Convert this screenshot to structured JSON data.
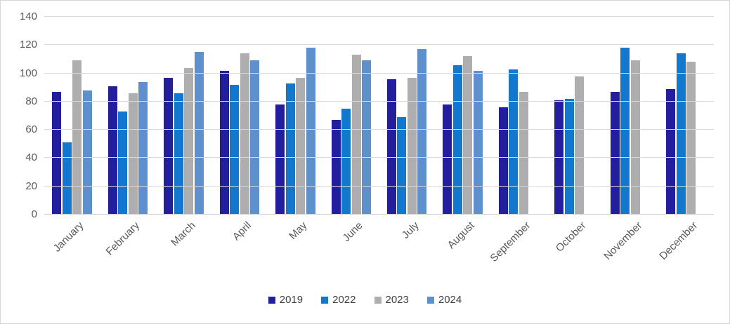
{
  "chart_data": {
    "type": "bar",
    "title": "",
    "xlabel": "",
    "ylabel": "",
    "categories": [
      "January",
      "February",
      "March",
      "April",
      "May",
      "June",
      "July",
      "August",
      "September",
      "October",
      "November",
      "December"
    ],
    "series": [
      {
        "name": "2019",
        "color": "#221E9E",
        "values": [
          87,
          91,
          97,
          102,
          78,
          67,
          96,
          78,
          76,
          81,
          87,
          89
        ]
      },
      {
        "name": "2022",
        "color": "#1377CE",
        "values": [
          51,
          73,
          86,
          92,
          93,
          75,
          69,
          106,
          103,
          82,
          118,
          114
        ]
      },
      {
        "name": "2023",
        "color": "#AEAEAE",
        "values": [
          109,
          86,
          104,
          114,
          97,
          113,
          97,
          112,
          87,
          98,
          109,
          108
        ]
      },
      {
        "name": "2024",
        "color": "#5D90CD",
        "values": [
          88,
          94,
          115,
          109,
          118,
          109,
          117,
          102,
          null,
          null,
          null,
          null
        ]
      }
    ],
    "y_axis": {
      "min": 0,
      "max": 140,
      "step": 20,
      "tick_labels": [
        "0",
        "20",
        "40",
        "60",
        "80",
        "100",
        "120",
        "140"
      ]
    },
    "x_axis": {
      "label_rotation_deg": 45
    },
    "grid": true,
    "legend_position": "bottom",
    "colors": {
      "background": "#FFFFFF",
      "gridline": "#D9D9D9",
      "axis_line": "#D0CECE",
      "tick_text": "#595959",
      "legend_text": "#404040"
    }
  }
}
